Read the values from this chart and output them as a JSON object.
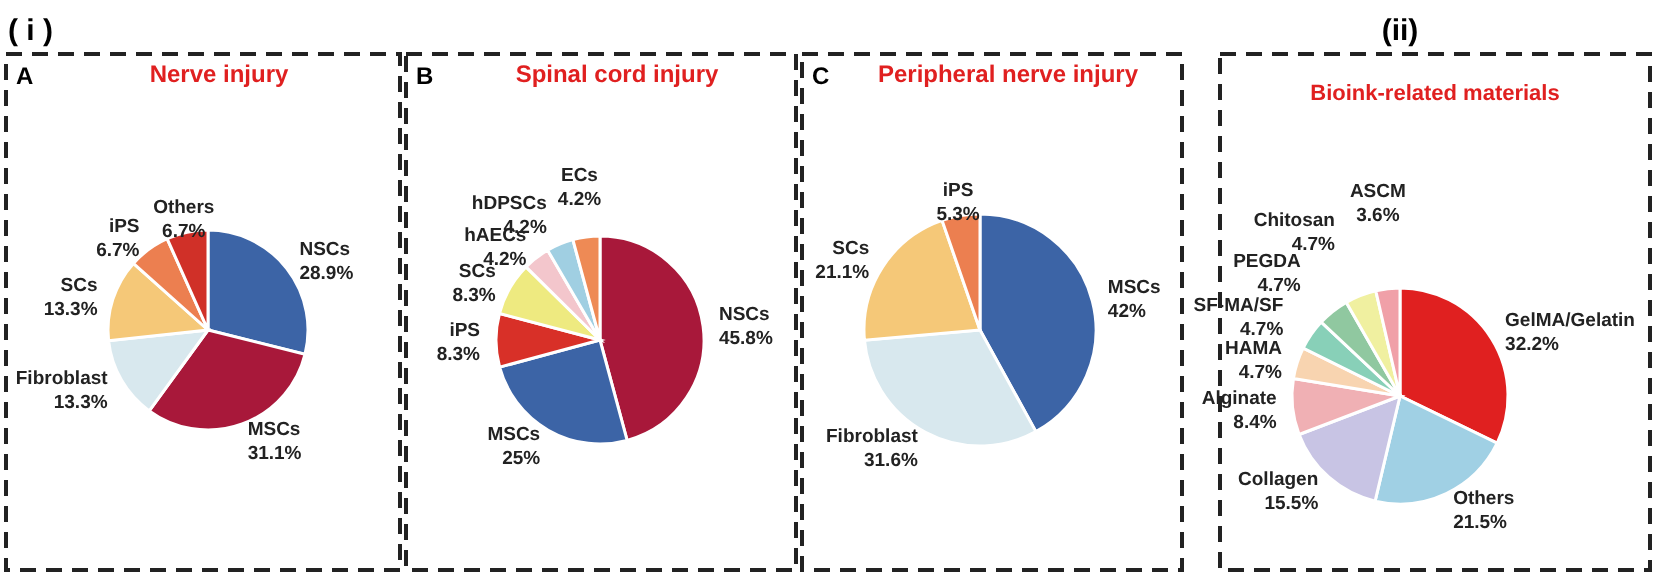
{
  "chart_data": [
    {
      "type": "pie",
      "title": "Nerve injury",
      "annotations": [
        "( i )",
        "A"
      ],
      "categories": [
        "NSCs",
        "MSCs",
        "Fibroblast",
        "SCs",
        "iPS",
        "Others"
      ],
      "values": [
        28.9,
        31.1,
        13.3,
        13.3,
        6.7,
        6.7
      ],
      "value_labels": [
        "28.9%",
        "31.1%",
        "13.3%",
        "13.3%",
        "6.7%",
        "6.7%"
      ],
      "colors": [
        "#3c64a6",
        "#a8183a",
        "#d8e8ee",
        "#f5c878",
        "#ec7f50",
        "#d03028"
      ]
    },
    {
      "type": "pie",
      "title": "Spinal cord injury",
      "annotations": [
        "B"
      ],
      "categories": [
        "NSCs",
        "MSCs",
        "iPS",
        "SCs",
        "hAECs",
        "hDPSCs",
        "ECs"
      ],
      "values": [
        45.8,
        25,
        8.3,
        8.3,
        4.2,
        4.2,
        4.2
      ],
      "value_labels": [
        "45.8%",
        "25%",
        "8.3%",
        "8.3%",
        "4.2%",
        "4.2%",
        "4.2%"
      ],
      "colors": [
        "#a8183a",
        "#3c64a6",
        "#d83028",
        "#eeea80",
        "#f3c6cc",
        "#a0cfe2",
        "#ee8a55"
      ]
    },
    {
      "type": "pie",
      "title": "Peripheral nerve injury",
      "annotations": [
        "C"
      ],
      "categories": [
        "MSCs",
        "Fibroblast",
        "SCs",
        "iPS"
      ],
      "values": [
        42,
        31.6,
        21.1,
        5.3
      ],
      "value_labels": [
        "42%",
        "31.6%",
        "21.1%",
        "5.3%"
      ],
      "colors": [
        "#3c64a6",
        "#d8e8ee",
        "#f5c878",
        "#ec7f50"
      ]
    },
    {
      "type": "pie",
      "title": "Bioink-related materials",
      "annotations": [
        "(ii)"
      ],
      "categories": [
        "GelMA/Gelatin",
        "Others",
        "Collagen",
        "Alginate",
        "HAMA",
        "SF-MA/SF",
        "PEGDA",
        "Chitosan",
        "ASCM"
      ],
      "values": [
        32.2,
        21.5,
        15.5,
        8.4,
        4.7,
        4.7,
        4.7,
        4.7,
        3.6
      ],
      "value_labels": [
        "32.2%",
        "21.5%",
        "15.5%",
        "8.4%",
        "4.7%",
        "4.7%",
        "4.7%",
        "4.7%",
        "3.6%"
      ],
      "colors": [
        "#e02020",
        "#a0d0e4",
        "#c8c4e4",
        "#f0b0b4",
        "#f8d4b0",
        "#88d0b8",
        "#90c8a0",
        "#f0f0a0",
        "#f0a0a8"
      ]
    }
  ]
}
